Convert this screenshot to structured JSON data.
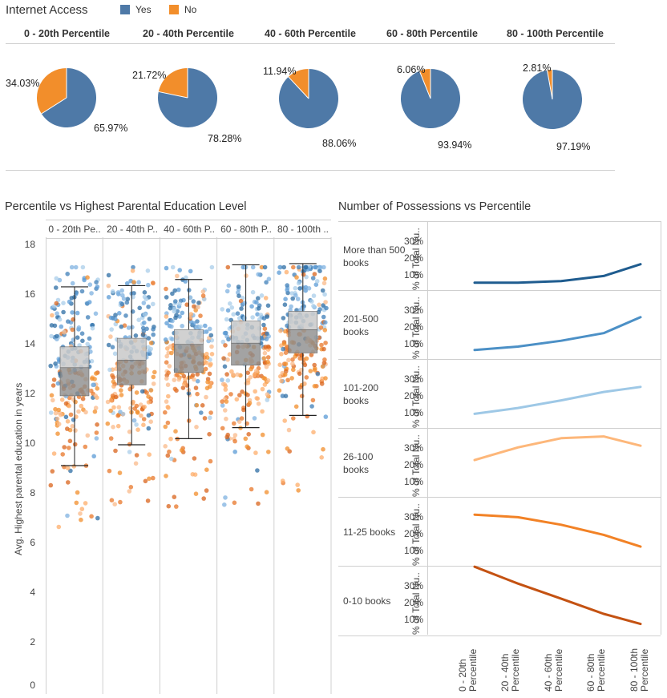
{
  "internet": {
    "title": "Internet Access",
    "legend": [
      {
        "label": "Yes",
        "color": "#4e79a7"
      },
      {
        "label": "No",
        "color": "#f28e2b"
      }
    ]
  },
  "strip": {
    "title": "Percentile vs Highest Parental Education Level",
    "col_headers": [
      "0 - 20th Pe..",
      "20 - 40th P..",
      "40 - 60th P..",
      "60 - 80th P..",
      "80 - 100th .."
    ],
    "y_axis_label": "Avg. Highest parental education in years",
    "y_ticks": [
      "18",
      "16",
      "14",
      "12",
      "10",
      "8",
      "6",
      "4",
      "2",
      "0"
    ]
  },
  "poss": {
    "title": "Number of Possessions vs Percentile",
    "axis_label": "% of Total Nu..",
    "tick_labels": [
      "30%",
      "20%",
      "10%"
    ],
    "x_labels": [
      {
        "line1": "0 - 20th",
        "line2": "Percentile"
      },
      {
        "line1": "20 - 40th",
        "line2": "Percentile"
      },
      {
        "line1": "40 - 60th",
        "line2": "Percentile"
      },
      {
        "line1": "60 - 80th",
        "line2": "Percentile"
      },
      {
        "line1": "80 - 100th",
        "line2": "Percentile"
      }
    ]
  },
  "chart_data": [
    {
      "type": "pie",
      "title": "Internet Access",
      "legend": [
        "Yes",
        "No"
      ],
      "colors": {
        "Yes": "#4e79a7",
        "No": "#f28e2b"
      },
      "panels": [
        {
          "label": "0 - 20th Percentile",
          "yes": 65.97,
          "no": 34.03,
          "yes_label": "65.97%",
          "no_label": "34.03%"
        },
        {
          "label": "20 - 40th Percentile",
          "yes": 78.28,
          "no": 21.72,
          "yes_label": "78.28%",
          "no_label": "21.72%"
        },
        {
          "label": "40 - 60th Percentile",
          "yes": 88.06,
          "no": 11.94,
          "yes_label": "88.06%",
          "no_label": "11.94%"
        },
        {
          "label": "60 - 80th Percentile",
          "yes": 93.94,
          "no": 6.06,
          "yes_label": "93.94%",
          "no_label": "6.06%"
        },
        {
          "label": "80 - 100th Percentile",
          "yes": 97.19,
          "no": 2.81,
          "yes_label": "97.19%",
          "no_label": "2.81%"
        }
      ]
    },
    {
      "type": "scatter",
      "title": "Percentile vs Highest Parental Education Level",
      "ylabel": "Avg. Highest parental education in years",
      "ylim": [
        0,
        18
      ],
      "columns": [
        "0 - 20th Pe..",
        "20 - 40th P..",
        "40 - 60th P..",
        "60 - 80th P..",
        "80 - 100th .."
      ],
      "boxplots": [
        {
          "whisker_low": 9.0,
          "q1": 11.85,
          "median": 13.0,
          "q3": 13.85,
          "whisker_high": 16.3
        },
        {
          "whisker_low": 9.85,
          "q1": 12.3,
          "median": 13.3,
          "q3": 14.2,
          "whisker_high": 16.35
        },
        {
          "whisker_low": 10.1,
          "q1": 12.8,
          "median": 13.95,
          "q3": 14.55,
          "whisker_high": 16.6
        },
        {
          "whisker_low": 10.55,
          "q1": 13.1,
          "median": 14.0,
          "q3": 14.9,
          "whisker_high": 17.2
        },
        {
          "whisker_low": 11.05,
          "q1": 13.6,
          "median": 14.55,
          "q3": 15.3,
          "whisker_high": 17.25
        }
      ],
      "point_colors": [
        "#2e6da4",
        "#5b9bd5",
        "#9ecae1",
        "#f28e2b",
        "#fdae6b",
        "#d9641c"
      ]
    },
    {
      "type": "line",
      "title": "Number of Possessions vs Percentile",
      "ylabel": "% of Total Nu..",
      "x": [
        "0 - 20th Percentile",
        "20 - 40th Percentile",
        "40 - 60th Percentile",
        "60 - 80th Percentile",
        "80 - 100th Percentile"
      ],
      "ylim": [
        0,
        40
      ],
      "series": [
        {
          "name": "More than 500 books",
          "color": "#1f5c8f",
          "values": [
            2,
            2,
            3,
            6,
            13
          ]
        },
        {
          "name": "201-500 books",
          "color": "#4c90c6",
          "values": [
            3,
            5,
            8.5,
            13,
            22.5
          ]
        },
        {
          "name": "101-200 books",
          "color": "#9ec8e6",
          "values": [
            6,
            9.5,
            14,
            19,
            22
          ]
        },
        {
          "name": "26-100 books",
          "color": "#fdb77a",
          "values": [
            19.5,
            27,
            32.5,
            33.5,
            28
          ]
        },
        {
          "name": "11-25 books",
          "color": "#f28226",
          "values": [
            28,
            26.5,
            22,
            16,
            9
          ]
        },
        {
          "name": "0-10 books",
          "color": "#c45212",
          "values": [
            38,
            28,
            19,
            10,
            4
          ]
        }
      ]
    }
  ]
}
